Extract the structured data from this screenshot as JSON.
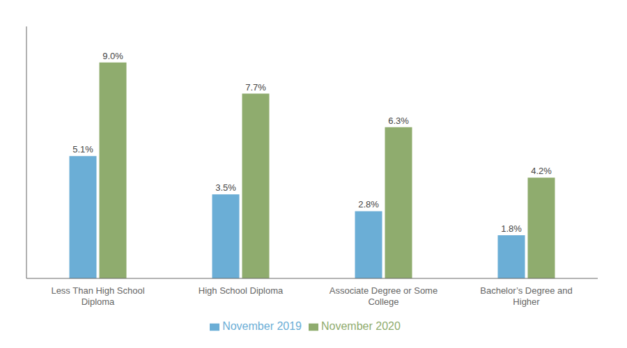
{
  "chart_data": {
    "type": "bar",
    "categories": [
      "Less Than High School\nDiploma",
      "High School Diploma",
      "Associate Degree or Some\nCollege",
      "Bachelor’s Degree and\nHigher"
    ],
    "series": [
      {
        "name": "November 2019",
        "color": "#6baed6",
        "values": [
          5.1,
          3.5,
          2.8,
          1.8
        ],
        "value_labels": [
          "5.1%",
          "3.5%",
          "2.8%",
          "1.8%"
        ]
      },
      {
        "name": "November 2020",
        "color": "#8fac6e",
        "values": [
          9.0,
          7.7,
          6.3,
          4.2
        ],
        "value_labels": [
          "9.0%",
          "7.7%",
          "6.3%",
          "4.2%"
        ]
      }
    ],
    "ylim": [
      0,
      10.5
    ],
    "grid": false,
    "legend": "bottom",
    "data_labels": true,
    "tick_labels": "x"
  }
}
